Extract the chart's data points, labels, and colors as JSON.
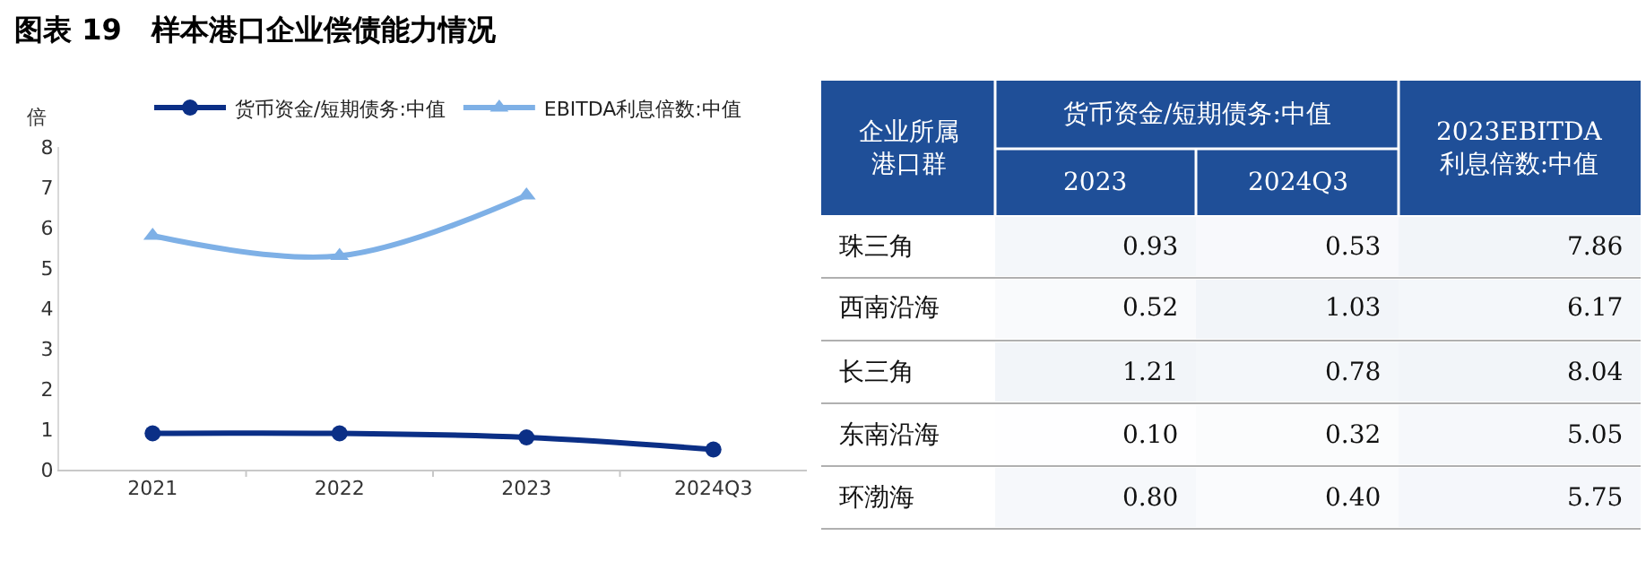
{
  "chart_data": [
    {
      "type": "line",
      "title": "图表 19   样本港口企业偿债能力情况",
      "ylabel": "倍",
      "categories": [
        "2021",
        "2022",
        "2023",
        "2024Q3"
      ],
      "series": [
        {
          "name": "货币资金/短期债务:中值",
          "color": "#0b2f86",
          "marker": "circle",
          "values": [
            0.9,
            0.9,
            0.8,
            0.5
          ]
        },
        {
          "name": "EBITDA利息倍数:中值",
          "color": "#7eb0e6",
          "marker": "triangle",
          "values": [
            5.8,
            5.3,
            6.8,
            null
          ]
        }
      ],
      "ylim": [
        0,
        8
      ],
      "yticks": [
        0,
        1,
        2,
        3,
        4,
        5,
        6,
        7,
        8
      ],
      "grid": false,
      "legend": "top"
    },
    {
      "type": "heatmap",
      "ylabel": "企业所属港口群",
      "xlabel": "货币资金/短期债务:中值",
      "categories": [
        "2023",
        "2024Q3",
        "2023EBITDA\n利息倍数:中值"
      ],
      "y_categories": [
        "珠三角",
        "西南沿海",
        "长三角",
        "东南沿海",
        "环渤海"
      ],
      "cells": [
        [
          0.93,
          0.53,
          7.86
        ],
        [
          0.52,
          1.03,
          6.17
        ],
        [
          1.21,
          0.78,
          8.04
        ],
        [
          0.1,
          0.32,
          5.05
        ],
        [
          0.8,
          0.4,
          5.75
        ]
      ],
      "cell_labels": [
        [
          "0.93",
          "0.53",
          "7.86"
        ],
        [
          "0.52",
          "1.03",
          "6.17"
        ],
        [
          "1.21",
          "0.78",
          "8.04"
        ],
        [
          "0.10",
          "0.32",
          "5.05"
        ],
        [
          "0.80",
          "0.40",
          "5.75"
        ]
      ]
    }
  ]
}
